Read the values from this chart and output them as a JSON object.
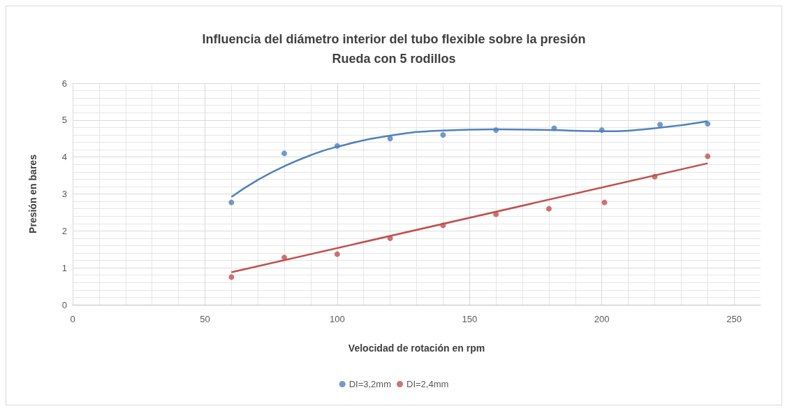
{
  "chart_data": {
    "type": "scatter",
    "title": "Influencia del diámetro interior del tubo flexible sobre la presión",
    "subtitle": "Rueda con 5 rodillos",
    "xlabel": "Velocidad de rotación en rpm",
    "ylabel": "Presión en bares",
    "series": [
      {
        "name": "DI=3,2mm",
        "color": "#4f81bd",
        "x": [
          60,
          80,
          100,
          120,
          140,
          160,
          182,
          200,
          222,
          240
        ],
        "values": [
          2.77,
          4.1,
          4.3,
          4.5,
          4.6,
          4.73,
          4.78,
          4.73,
          4.88,
          4.9
        ]
      },
      {
        "name": "DI=2,4mm",
        "color": "#c0504d",
        "x": [
          60,
          80,
          100,
          120,
          140,
          160,
          180,
          201,
          220,
          240
        ],
        "values": [
          0.75,
          1.28,
          1.37,
          1.8,
          2.15,
          2.45,
          2.6,
          2.77,
          3.47,
          4.02
        ]
      },
      {
        "type": "line",
        "marker": "none",
        "color": "#4f81bd",
        "x": [
          60,
          70,
          80,
          90,
          100,
          120,
          140,
          160,
          180,
          200,
          220,
          240
        ],
        "values": [
          2.92,
          3.38,
          3.75,
          4.05,
          4.28,
          4.58,
          4.72,
          4.75,
          4.73,
          4.7,
          4.78,
          4.97
        ]
      },
      {
        "type": "line",
        "marker": "none",
        "color": "#c0504d",
        "x": [
          60,
          240
        ],
        "values": [
          0.88,
          3.83
        ]
      }
    ],
    "xlim": [
      0,
      260
    ],
    "xticks": [
      0,
      50,
      100,
      150,
      200,
      250
    ],
    "ylim": [
      0,
      6
    ],
    "yticks": [
      0,
      1,
      2,
      3,
      4,
      5,
      6
    ],
    "grid": true,
    "legend": "bottom",
    "marker": "circle"
  }
}
